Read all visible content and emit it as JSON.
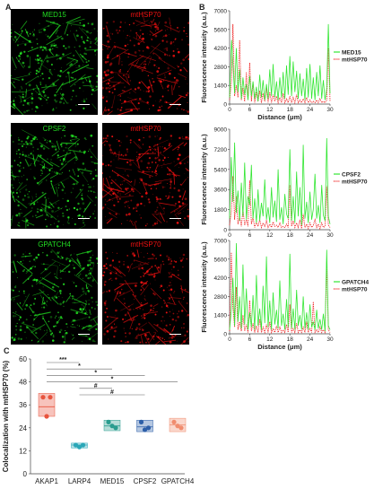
{
  "figure": {
    "panel_labels": {
      "a": "A",
      "b": "B",
      "c": "C"
    },
    "colors": {
      "green": "#22dd22",
      "red": "#ee1111",
      "line_green": "#33e633",
      "line_red": "#ee2222"
    }
  },
  "micrographs": [
    {
      "left_label": "MED15",
      "right_label": "mtHSP70"
    },
    {
      "left_label": "CPSF2",
      "right_label": "mtHSP70"
    },
    {
      "left_label": "GPATCH4",
      "right_label": "mtHSP70"
    }
  ],
  "chart_data": [
    {
      "type": "line",
      "ylabel": "Fluorescence intensity (a.u.)",
      "xlabel": "Distance (μm)",
      "xlim": [
        0,
        30
      ],
      "xticks": [
        0,
        6,
        12,
        18,
        24,
        30
      ],
      "ylim": [
        0,
        7000
      ],
      "yticks": [
        0,
        1400,
        2800,
        4200,
        5600,
        7000
      ],
      "series": [
        {
          "name": "MED15",
          "style": "solid",
          "color": "#33e633",
          "x": [
            0,
            0.6,
            1,
            1.5,
            2,
            2.5,
            3,
            3.5,
            4,
            4.5,
            5,
            5.5,
            6,
            6.5,
            7,
            7.5,
            8,
            8.5,
            9,
            9.5,
            10,
            10.5,
            11,
            11.5,
            12,
            12.5,
            13,
            13.5,
            14,
            14.5,
            15,
            15.5,
            16,
            16.5,
            17,
            17.5,
            18,
            18.5,
            19,
            19.5,
            20,
            20.5,
            21,
            21.5,
            22,
            22.5,
            23,
            23.5,
            24,
            24.5,
            25,
            25.5,
            26,
            26.5,
            27,
            27.5,
            28,
            28.5,
            29,
            29.5,
            30
          ],
          "y": [
            500,
            4800,
            3000,
            800,
            4200,
            900,
            2600,
            400,
            2000,
            700,
            1500,
            300,
            2100,
            600,
            1700,
            400,
            1300,
            200,
            2200,
            500,
            1800,
            300,
            1500,
            400,
            2600,
            600,
            3000,
            500,
            1700,
            300,
            2000,
            500,
            2400,
            400,
            2900,
            700,
            3600,
            600,
            3200,
            900,
            2500,
            400,
            2300,
            600,
            1900,
            300,
            2700,
            500,
            3000,
            400,
            2000,
            300,
            2400,
            600,
            2900,
            400,
            1800,
            300,
            1200,
            6000,
            800
          ]
        },
        {
          "name": "mtHSP70",
          "style": "dotted",
          "color": "#ee2222",
          "x": [
            0,
            0.6,
            1,
            1.5,
            2,
            2.5,
            3,
            3.5,
            4,
            4.5,
            5,
            5.5,
            6,
            6.5,
            7,
            7.5,
            8,
            8.5,
            9,
            9.5,
            10,
            10.5,
            11,
            11.5,
            12,
            12.5,
            13,
            13.5,
            14,
            14.5,
            15,
            15.5,
            16,
            16.5,
            17,
            17.5,
            18,
            18.5,
            19,
            19.5,
            20,
            20.5,
            21,
            21.5,
            22,
            22.5,
            23,
            23.5,
            24,
            24.5,
            25,
            25.5,
            26,
            26.5,
            27,
            27.5,
            28,
            28.5,
            29,
            29.5,
            30
          ],
          "y": [
            300,
            1800,
            6000,
            600,
            1400,
            500,
            4800,
            300,
            1200,
            200,
            2400,
            300,
            3100,
            200,
            1600,
            100,
            900,
            200,
            1000,
            100,
            800,
            200,
            1200,
            100,
            900,
            100,
            700,
            200,
            600,
            100,
            500,
            100,
            800,
            100,
            400,
            100,
            600,
            100,
            500,
            100,
            700,
            100,
            300,
            100,
            400,
            100,
            500,
            100,
            300,
            100,
            200,
            100,
            300,
            100,
            400,
            100,
            200,
            100,
            300,
            4200,
            200
          ]
        }
      ]
    },
    {
      "type": "line",
      "ylabel": "Fluorescence intensity (a.u.)",
      "xlabel": "",
      "xlim": [
        0,
        30
      ],
      "xticks": [
        0,
        6,
        12,
        18,
        24,
        30
      ],
      "ylim": [
        0,
        9000
      ],
      "yticks": [
        0,
        1800,
        3600,
        5400,
        7200,
        9000
      ],
      "series": [
        {
          "name": "CPSF2",
          "style": "solid",
          "color": "#33e633",
          "x": [
            0,
            0.5,
            1,
            1.5,
            2,
            2.5,
            3,
            3.5,
            4,
            4.5,
            5,
            5.5,
            6,
            6.5,
            7,
            7.5,
            8,
            8.5,
            9,
            9.5,
            10,
            10.5,
            11,
            11.5,
            12,
            12.5,
            13,
            13.5,
            14,
            14.5,
            15,
            15.5,
            16,
            16.5,
            17,
            17.5,
            18,
            18.5,
            19,
            19.5,
            20,
            20.5,
            21,
            21.5,
            22,
            22.5,
            23,
            23.5,
            24,
            24.5,
            25,
            25.5,
            26,
            26.5,
            27,
            27.5,
            28,
            28.5,
            29,
            29.5,
            30
          ],
          "y": [
            1000,
            6500,
            2500,
            7800,
            1500,
            3500,
            800,
            4200,
            1200,
            6000,
            900,
            3000,
            2200,
            5800,
            1000,
            2800,
            600,
            3600,
            800,
            2400,
            1200,
            4500,
            900,
            2000,
            600,
            3800,
            1100,
            2600,
            700,
            5400,
            900,
            2000,
            500,
            3200,
            1400,
            1000,
            7200,
            800,
            3000,
            600,
            5200,
            1200,
            3800,
            400,
            7600,
            1000,
            2500,
            600,
            3400,
            900,
            1800,
            5000,
            1000,
            2200,
            600,
            4000,
            1300,
            800,
            8200,
            1200,
            500
          ]
        },
        {
          "name": "mtHSP70",
          "style": "dotted",
          "color": "#ee2222",
          "x": [
            0,
            0.5,
            1,
            1.5,
            2,
            2.5,
            3,
            3.5,
            4,
            4.5,
            5,
            5.5,
            6,
            6.5,
            7,
            7.5,
            8,
            8.5,
            9,
            9.5,
            10,
            10.5,
            11,
            11.5,
            12,
            12.5,
            13,
            13.5,
            14,
            14.5,
            15,
            15.5,
            16,
            16.5,
            17,
            17.5,
            18,
            18.5,
            19,
            19.5,
            20,
            20.5,
            21,
            21.5,
            22,
            22.5,
            23,
            23.5,
            24,
            24.5,
            25,
            25.5,
            26,
            26.5,
            27,
            27.5,
            28,
            28.5,
            29,
            29.5,
            30
          ],
          "y": [
            400,
            1600,
            4800,
            900,
            3000,
            500,
            1200,
            300,
            1800,
            400,
            900,
            300,
            4400,
            500,
            1100,
            200,
            700,
            300,
            900,
            200,
            600,
            300,
            800,
            200,
            500,
            200,
            700,
            300,
            400,
            200,
            600,
            200,
            300,
            200,
            500,
            200,
            4000,
            300,
            800,
            200,
            600,
            200,
            900,
            100,
            1400,
            200,
            500,
            100,
            600,
            200,
            400,
            900,
            200,
            500,
            100,
            600,
            200,
            300,
            3900,
            400,
            200
          ]
        }
      ]
    },
    {
      "type": "line",
      "ylabel": "Fluorescence intensity (a.u.)",
      "xlabel": "Distance (μm)",
      "xlim": [
        0,
        30
      ],
      "xticks": [
        0,
        6,
        12,
        18,
        24,
        30
      ],
      "ylim": [
        0,
        7000
      ],
      "yticks": [
        0,
        1400,
        2800,
        4200,
        5600,
        7000
      ],
      "series": [
        {
          "name": "GPATCH4",
          "style": "solid",
          "color": "#33e633",
          "x": [
            0,
            0.5,
            1,
            1.5,
            2,
            2.5,
            3,
            3.5,
            4,
            4.5,
            5,
            5.5,
            6,
            6.5,
            7,
            7.5,
            8,
            8.5,
            9,
            9.5,
            10,
            10.5,
            11,
            11.5,
            12,
            12.5,
            13,
            13.5,
            14,
            14.5,
            15,
            15.5,
            16,
            16.5,
            17,
            17.5,
            18,
            18.5,
            19,
            19.5,
            20,
            20.5,
            21,
            21.5,
            22,
            22.5,
            23,
            23.5,
            24,
            24.5,
            25,
            25.5,
            26,
            26.5,
            27,
            27.5,
            28,
            28.5,
            29,
            29.5,
            30
          ],
          "y": [
            300,
            1800,
            4200,
            600,
            6800,
            900,
            2800,
            400,
            5200,
            700,
            3400,
            300,
            1600,
            500,
            2900,
            300,
            4400,
            600,
            1900,
            300,
            3600,
            800,
            5800,
            500,
            2500,
            300,
            3100,
            700,
            1800,
            400,
            4000,
            600,
            1500,
            300,
            2600,
            500,
            6000,
            400,
            1900,
            300,
            3300,
            600,
            1400,
            300,
            2800,
            400,
            1600,
            300,
            2200,
            500,
            900,
            300,
            1800,
            400,
            1100,
            300,
            1500,
            200,
            6300,
            600,
            300
          ]
        },
        {
          "name": "mtHSP70",
          "style": "dotted",
          "color": "#ee2222",
          "x": [
            0,
            0.5,
            1,
            1.5,
            2,
            2.5,
            3,
            3.5,
            4,
            4.5,
            5,
            5.5,
            6,
            6.5,
            7,
            7.5,
            8,
            8.5,
            9,
            9.5,
            10,
            10.5,
            11,
            11.5,
            12,
            12.5,
            13,
            13.5,
            14,
            14.5,
            15,
            15.5,
            16,
            16.5,
            17,
            17.5,
            18,
            18.5,
            19,
            19.5,
            20,
            20.5,
            21,
            21.5,
            22,
            22.5,
            23,
            23.5,
            24,
            24.5,
            25,
            25.5,
            26,
            26.5,
            27,
            27.5,
            28,
            28.5,
            29,
            29.5,
            30
          ],
          "y": [
            200,
            6100,
            2000,
            500,
            3500,
            300,
            900,
            200,
            1400,
            200,
            700,
            100,
            2500,
            200,
            800,
            100,
            600,
            100,
            1100,
            100,
            500,
            100,
            700,
            100,
            900,
            100,
            400,
            100,
            600,
            100,
            500,
            100,
            300,
            100,
            700,
            100,
            2200,
            100,
            400,
            100,
            800,
            100,
            300,
            100,
            500,
            100,
            900,
            100,
            400,
            100,
            2400,
            100,
            300,
            100,
            500,
            100,
            300,
            100,
            5400,
            300,
            100
          ]
        }
      ]
    },
    {
      "type": "scatter",
      "ylabel": "Colocalization with mtHSP70 (%)",
      "ylim": [
        0,
        60
      ],
      "yticks": [
        0,
        12,
        24,
        36,
        48,
        60
      ],
      "categories": [
        "AKAP1",
        "LARP4",
        "MED15",
        "CPSF2",
        "GPATCH4"
      ],
      "colors": [
        "#e8543e",
        "#2aa7b8",
        "#2a9d8f",
        "#2c5ea8",
        "#f08c6e"
      ],
      "points": [
        [
          40,
          40,
          30
        ],
        [
          15,
          15,
          14
        ],
        [
          27,
          24,
          25
        ],
        [
          27,
          24,
          23
        ],
        [
          27,
          24,
          25
        ]
      ],
      "box": [
        [
          30,
          42,
          35
        ],
        [
          13.5,
          16,
          15
        ],
        [
          22.5,
          28,
          25
        ],
        [
          22,
          28,
          24.5
        ],
        [
          22,
          29,
          25.5
        ]
      ],
      "significance": [
        {
          "from": 0,
          "to": 1,
          "label": "***"
        },
        {
          "from": 0,
          "to": 2,
          "label": "*"
        },
        {
          "from": 0,
          "to": 3,
          "label": "*"
        },
        {
          "from": 0,
          "to": 4,
          "label": "*"
        },
        {
          "from": 1,
          "to": 2,
          "label": "#"
        },
        {
          "from": 1,
          "to": 3,
          "label": "#"
        }
      ]
    }
  ]
}
